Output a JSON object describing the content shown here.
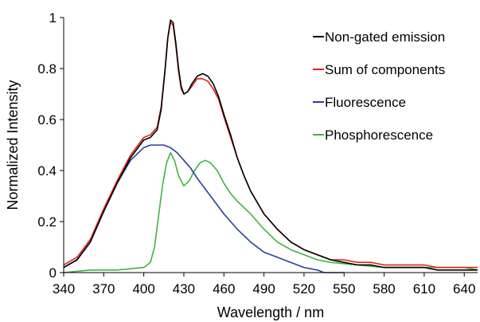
{
  "chart_data": {
    "type": "line",
    "title": "",
    "xlabel": "Wavelength / nm",
    "ylabel": "Normalized Intensity",
    "xlim": [
      340,
      650
    ],
    "ylim": [
      0,
      1
    ],
    "xticks": [
      340,
      370,
      400,
      430,
      460,
      490,
      520,
      550,
      580,
      610,
      640
    ],
    "yticks": [
      0,
      0.2,
      0.4,
      0.6,
      0.8,
      1
    ],
    "ytick_labels": [
      "0",
      "0.2",
      "0.4",
      "0.6",
      "0.8",
      "1"
    ],
    "grid": false,
    "legend_position": "top-right",
    "series": [
      {
        "name": "Non-gated emission",
        "color": "#000000",
        "x": [
          340,
          350,
          360,
          370,
          380,
          390,
          400,
          405,
          410,
          413,
          416,
          418,
          420,
          422,
          424,
          426,
          428,
          430,
          433,
          436,
          440,
          444,
          448,
          452,
          456,
          460,
          465,
          470,
          475,
          480,
          490,
          500,
          510,
          520,
          530,
          540,
          550,
          560,
          570,
          580,
          590,
          600,
          610,
          620,
          630,
          640,
          650
        ],
        "y": [
          0.02,
          0.05,
          0.12,
          0.24,
          0.35,
          0.45,
          0.52,
          0.53,
          0.56,
          0.64,
          0.8,
          0.92,
          0.99,
          0.98,
          0.9,
          0.8,
          0.73,
          0.7,
          0.71,
          0.74,
          0.77,
          0.78,
          0.77,
          0.74,
          0.69,
          0.62,
          0.54,
          0.45,
          0.38,
          0.32,
          0.23,
          0.17,
          0.12,
          0.09,
          0.07,
          0.05,
          0.04,
          0.03,
          0.03,
          0.02,
          0.02,
          0.02,
          0.02,
          0.01,
          0.01,
          0.01,
          0.01
        ]
      },
      {
        "name": "Sum of components",
        "color": "#e32219",
        "x": [
          340,
          350,
          360,
          370,
          380,
          390,
          400,
          405,
          410,
          413,
          416,
          418,
          420,
          422,
          424,
          426,
          428,
          430,
          433,
          436,
          440,
          444,
          448,
          452,
          456,
          460,
          465,
          470,
          475,
          480,
          490,
          500,
          510,
          520,
          530,
          540,
          550,
          560,
          570,
          580,
          590,
          600,
          610,
          620,
          630,
          640,
          650
        ],
        "y": [
          0.03,
          0.06,
          0.13,
          0.25,
          0.36,
          0.46,
          0.53,
          0.54,
          0.57,
          0.65,
          0.8,
          0.92,
          0.98,
          0.97,
          0.89,
          0.79,
          0.72,
          0.7,
          0.71,
          0.73,
          0.76,
          0.76,
          0.75,
          0.72,
          0.68,
          0.61,
          0.53,
          0.45,
          0.38,
          0.32,
          0.23,
          0.17,
          0.12,
          0.09,
          0.07,
          0.05,
          0.05,
          0.04,
          0.04,
          0.03,
          0.03,
          0.03,
          0.03,
          0.02,
          0.02,
          0.02,
          0.02
        ]
      },
      {
        "name": "Fluorescence",
        "color": "#2a3f9d",
        "x": [
          340,
          350,
          360,
          370,
          380,
          390,
          400,
          405,
          410,
          415,
          420,
          425,
          430,
          435,
          440,
          450,
          460,
          470,
          480,
          490,
          500,
          510,
          520,
          530,
          535,
          540,
          545,
          550
        ],
        "y": [
          0.02,
          0.05,
          0.12,
          0.24,
          0.35,
          0.44,
          0.49,
          0.5,
          0.5,
          0.5,
          0.49,
          0.47,
          0.44,
          0.41,
          0.37,
          0.3,
          0.23,
          0.17,
          0.12,
          0.08,
          0.06,
          0.04,
          0.02,
          0.01,
          0.0,
          0.0,
          0.0,
          0.0
        ]
      },
      {
        "name": "Phosphorescence",
        "color": "#3db53f",
        "x": [
          340,
          360,
          380,
          400,
          405,
          408,
          411,
          414,
          417,
          420,
          423,
          426,
          430,
          434,
          438,
          442,
          446,
          450,
          455,
          460,
          465,
          470,
          480,
          490,
          500,
          510,
          520,
          530,
          540,
          560,
          580,
          600,
          620,
          640,
          650
        ],
        "y": [
          0.0,
          0.01,
          0.01,
          0.02,
          0.04,
          0.1,
          0.22,
          0.34,
          0.43,
          0.47,
          0.44,
          0.38,
          0.34,
          0.36,
          0.4,
          0.43,
          0.44,
          0.43,
          0.4,
          0.35,
          0.31,
          0.28,
          0.23,
          0.17,
          0.12,
          0.09,
          0.07,
          0.05,
          0.04,
          0.03,
          0.02,
          0.02,
          0.02,
          0.02,
          0.01
        ]
      }
    ]
  }
}
